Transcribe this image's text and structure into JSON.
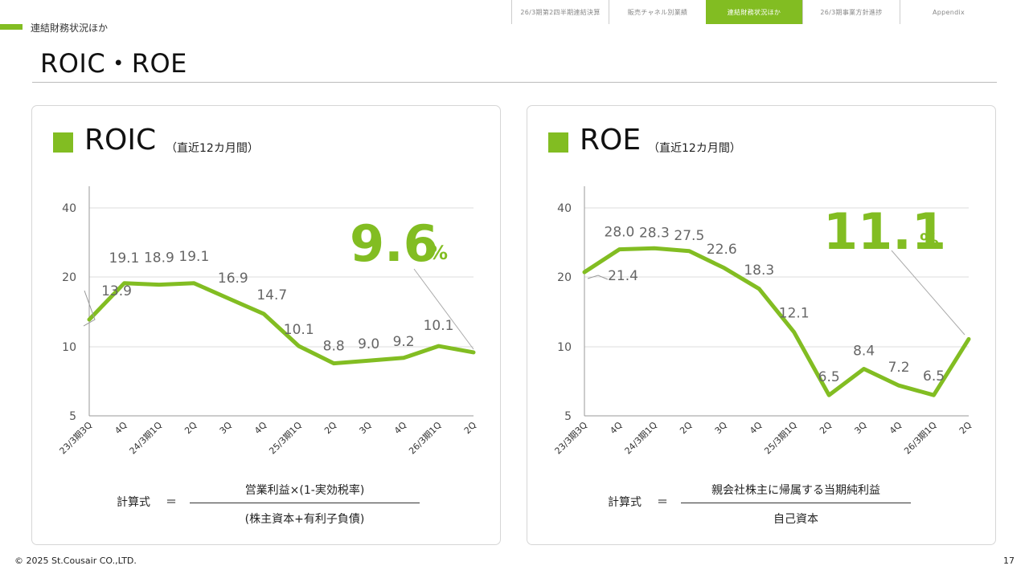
{
  "nav": {
    "tabs": [
      {
        "label": "26/3期第2四半期連結決算",
        "active": false
      },
      {
        "label": "販売チャネル別業績",
        "active": false
      },
      {
        "label": "連結財務状況ほか",
        "active": true
      },
      {
        "label": "26/3期事業方針進捗",
        "active": false
      },
      {
        "label": "Appendix",
        "active": false
      }
    ]
  },
  "section_label": "連結財務状況ほか",
  "page_title": "ROIC・ROE",
  "colors": {
    "accent": "#82bd22",
    "grid": "#dddddd",
    "axis_text": "#555555",
    "value_text": "#666666"
  },
  "chart_data": [
    {
      "type": "line",
      "title": "ROIC",
      "subtitle": "（直近12カ月間）",
      "categories": [
        "23/3期3Q",
        "4Q",
        "24/3期1Q",
        "2Q",
        "3Q",
        "4Q",
        "25/3期1Q",
        "2Q",
        "3Q",
        "4Q",
        "26/3期1Q",
        "2Q"
      ],
      "series": [
        {
          "values": [
            13.9,
            19.1,
            18.9,
            19.1,
            16.9,
            14.7,
            10.1,
            8.8,
            9.0,
            9.2,
            10.1,
            9.6
          ]
        }
      ],
      "data_labels": [
        "13.9",
        "19.1",
        "18.9",
        "19.1",
        "16.9",
        "14.7",
        "10.1",
        "8.8",
        "9.0",
        "9.2",
        "10.1"
      ],
      "yticks": [
        5,
        10,
        20,
        40
      ],
      "ylim": [
        5,
        40
      ],
      "highlight": {
        "value": "9.6",
        "unit": "%"
      },
      "formula": {
        "label": "計算式",
        "equals": "＝",
        "numerator": "営業利益×(1-実効税率)",
        "denominator": "(株主資本+有利子負債)"
      }
    },
    {
      "type": "line",
      "title": "ROE",
      "subtitle": "（直近12カ月間）",
      "categories": [
        "23/3期3Q",
        "4Q",
        "24/3期1Q",
        "2Q",
        "3Q",
        "4Q",
        "25/3期1Q",
        "2Q",
        "3Q",
        "4Q",
        "26/3期1Q",
        "2Q"
      ],
      "series": [
        {
          "values": [
            21.4,
            28.0,
            28.3,
            27.5,
            22.6,
            18.3,
            12.1,
            6.5,
            8.4,
            7.2,
            6.5,
            11.1
          ]
        }
      ],
      "data_labels": [
        "21.4",
        "28.0",
        "28.3",
        "27.5",
        "22.6",
        "18.3",
        "12.1",
        "6.5",
        "8.4",
        "7.2",
        "6.5"
      ],
      "yticks": [
        5,
        10,
        20,
        40
      ],
      "ylim": [
        5,
        40
      ],
      "highlight": {
        "value": "11.1",
        "unit": "%"
      },
      "formula": {
        "label": "計算式",
        "equals": "＝",
        "numerator": "親会社株主に帰属する当期純利益",
        "denominator": "自己資本"
      }
    }
  ],
  "footer": {
    "copyright": "© 2025 St.Cousair CO.,LTD.",
    "page_number": "17"
  }
}
